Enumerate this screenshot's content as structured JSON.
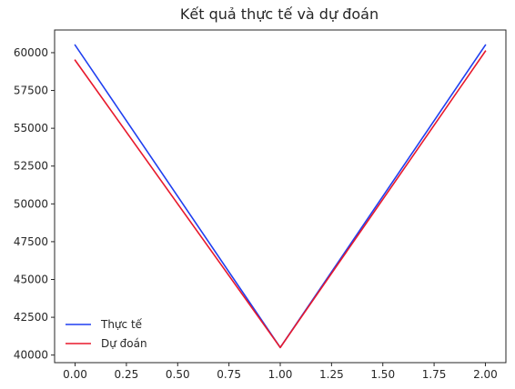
{
  "chart_data": {
    "type": "line",
    "title": "Kết quả thực tế và dự đoán",
    "xlabel": "",
    "ylabel": "",
    "x": [
      0,
      1,
      2
    ],
    "series": [
      {
        "name": "Thực tế",
        "values": [
          60500,
          40500,
          60500
        ],
        "color": "#1f3ff0"
      },
      {
        "name": "Dự đoán",
        "values": [
          59500,
          40500,
          60100
        ],
        "color": "#e8192c"
      }
    ],
    "xlim": [
      -0.1,
      2.1
    ],
    "ylim": [
      39500,
      61500
    ],
    "xticks": [
      0.0,
      0.25,
      0.5,
      0.75,
      1.0,
      1.25,
      1.5,
      1.75,
      2.0
    ],
    "xtick_labels": [
      "0.00",
      "0.25",
      "0.50",
      "0.75",
      "1.00",
      "1.25",
      "1.50",
      "1.75",
      "2.00"
    ],
    "yticks": [
      40000,
      42500,
      45000,
      47500,
      50000,
      52500,
      55000,
      57500,
      60000
    ],
    "ytick_labels": [
      "40000",
      "42500",
      "45000",
      "47500",
      "50000",
      "52500",
      "55000",
      "57500",
      "60000"
    ],
    "grid": false,
    "legend_position": "lower-left"
  }
}
